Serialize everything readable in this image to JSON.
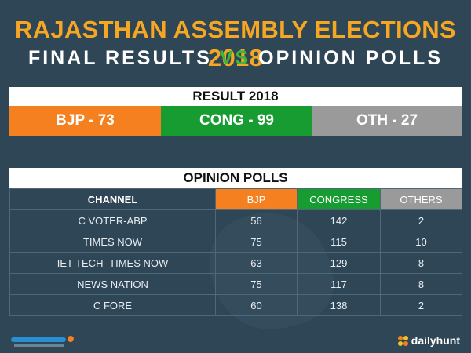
{
  "header": {
    "title": "RAJASTHAN ASSEMBLY ELECTIONS 2018",
    "subtitle_left": "FINAL RESULTS",
    "subtitle_vs": "VS",
    "subtitle_right": "OPINION POLLS"
  },
  "result": {
    "heading": "RESULT 2018",
    "bjp": "BJP - 73",
    "cong": "CONG - 99",
    "oth": "OTH - 27",
    "colors": {
      "bjp": "#f4801f",
      "cong": "#169c31",
      "oth": "#9a9a9a"
    }
  },
  "polls": {
    "heading": "OPINION POLLS",
    "columns": [
      "CHANNEL",
      "BJP",
      "CONGRESS",
      "OTHERS"
    ],
    "rows": [
      [
        "C VOTER-ABP",
        "56",
        "142",
        "2"
      ],
      [
        "TIMES NOW",
        "75",
        "115",
        "10"
      ],
      [
        "IET TECH- TIMES NOW",
        "63",
        "129",
        "8"
      ],
      [
        "NEWS NATION",
        "75",
        "117",
        "8"
      ],
      [
        "C FORE",
        "60",
        "138",
        "2"
      ]
    ]
  },
  "footer": {
    "brand": "dailyhunt",
    "brand_icon": "dailyhunt-dots-icon",
    "left_logo": "partner-logo-icon"
  }
}
